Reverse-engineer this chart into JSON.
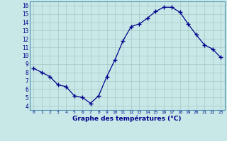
{
  "x": [
    0,
    1,
    2,
    3,
    4,
    5,
    6,
    7,
    8,
    9,
    10,
    11,
    12,
    13,
    14,
    15,
    16,
    17,
    18,
    19,
    20,
    21,
    22,
    23
  ],
  "y": [
    8.5,
    8.0,
    7.5,
    6.5,
    6.3,
    5.2,
    5.0,
    4.3,
    5.2,
    7.5,
    9.5,
    11.8,
    13.5,
    13.8,
    14.5,
    15.3,
    15.8,
    15.8,
    15.2,
    13.8,
    12.5,
    11.3,
    10.8,
    9.8
  ],
  "xlabel": "Graphe des températures (°C)",
  "ylim": [
    3.5,
    16.5
  ],
  "xlim": [
    -0.5,
    23.5
  ],
  "yticks": [
    4,
    5,
    6,
    7,
    8,
    9,
    10,
    11,
    12,
    13,
    14,
    15,
    16
  ],
  "xticks": [
    0,
    1,
    2,
    3,
    4,
    5,
    6,
    7,
    8,
    9,
    10,
    11,
    12,
    13,
    14,
    15,
    16,
    17,
    18,
    19,
    20,
    21,
    22,
    23
  ],
  "line_color": "#00008b",
  "marker": "+",
  "bg_color": "#c8e8e8",
  "grid_color": "#a8c8c8",
  "axis_color": "#00008b",
  "label_color": "#00008b",
  "spine_color": "#5090b0"
}
